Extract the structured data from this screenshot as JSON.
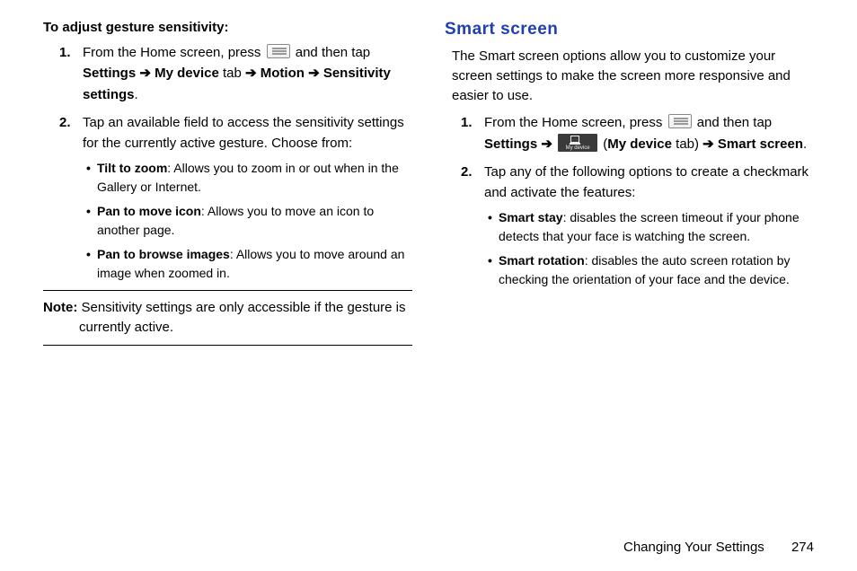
{
  "left": {
    "heading": "To adjust gesture sensitivity:",
    "step1": {
      "num": "1.",
      "t1": "From the Home screen, press ",
      "t2": " and then tap ",
      "settings": "Settings",
      "arrow1": " ➔ ",
      "mydevice": "My device",
      "tab": " tab ",
      "arrow2": "➔ ",
      "motion": "Motion",
      "arrow3": " ➔ ",
      "sensitivity": "Sensitivity settings",
      "period": "."
    },
    "step2": {
      "num": "2.",
      "text": "Tap an available field to access the sensitivity settings for the currently active gesture. Choose from:",
      "items": [
        {
          "term": "Tilt to zoom",
          "desc": ": Allows you to zoom in or out when in the Gallery or Internet."
        },
        {
          "term": "Pan to move icon",
          "desc": ": Allows you to move an icon to another page."
        },
        {
          "term": "Pan to browse images",
          "desc": ": Allows you to move around an image when zoomed in."
        }
      ]
    },
    "note": {
      "label": "Note:",
      "text": " Sensitivity settings are only accessible if the gesture is currently active."
    }
  },
  "right": {
    "title": "Smart screen",
    "intro": "The Smart screen options allow you to customize your screen settings to make the screen more responsive and easier to use.",
    "step1": {
      "num": "1.",
      "t1": "From the Home screen, press ",
      "t2": " and then tap ",
      "settings": "Settings",
      "arrow1": " ➔ ",
      "paren_open": " (",
      "mydevice": "My device",
      "tab_close": " tab) ",
      "arrow2": "➔ ",
      "smartscreen": "Smart screen",
      "period": "."
    },
    "step2": {
      "num": "2.",
      "text": "Tap any of the following options to create a checkmark and activate the features:",
      "items": [
        {
          "term": "Smart stay",
          "desc": ": disables the screen timeout if your phone detects that your face is watching the screen."
        },
        {
          "term": "Smart rotation",
          "desc": ": disables the auto screen rotation by checking the orientation of your face and the device."
        }
      ]
    }
  },
  "footer": {
    "section": "Changing Your Settings",
    "page": "274"
  },
  "icons": {
    "mydevice_label": "My device"
  }
}
